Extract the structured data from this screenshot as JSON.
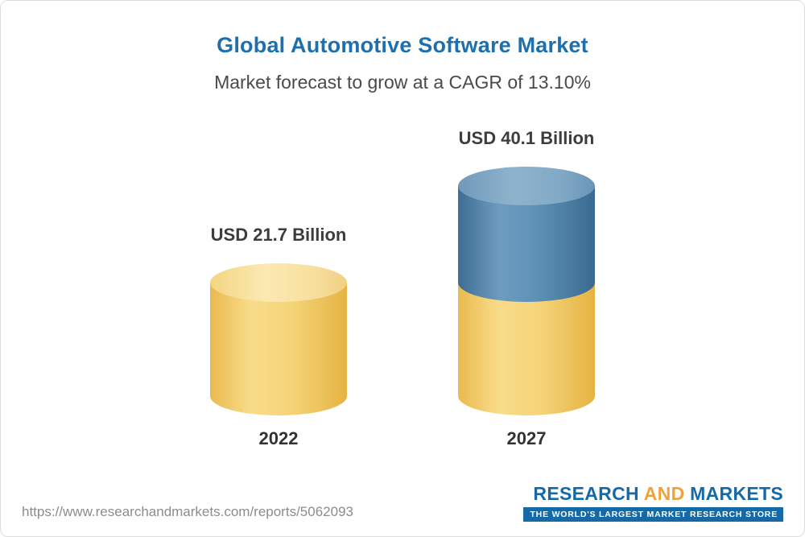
{
  "header": {
    "title": "Global Automotive Software Market",
    "subtitle": "Market forecast to grow at a CAGR of 13.10%"
  },
  "chart_data": {
    "type": "bar",
    "variant": "3d-cylinder",
    "categories": [
      "2022",
      "2027"
    ],
    "values": [
      21.7,
      40.1
    ],
    "value_labels": [
      "USD 21.7 Billion",
      "USD 40.1 Billion"
    ],
    "unit": "USD Billion",
    "title": "Global Automotive Software Market",
    "subtitle": "Market forecast to grow at a CAGR of 13.10%",
    "cagr": "13.10%",
    "ylim": [
      0,
      40.1
    ],
    "grid": false,
    "legend": false,
    "colors": {
      "base_segment": "#f2cd69",
      "growth_segment": "#4d82ad"
    },
    "notes": "2027 cylinder shows base (matching 2022 value) in gold with growth portion stacked in blue"
  },
  "footer": {
    "url": "https://www.researchandmarkets.com/reports/5062093",
    "logo": {
      "research": "RESEARCH",
      "and": " AND ",
      "markets": "MARKETS",
      "tagline": "THE WORLD'S LARGEST MARKET RESEARCH STORE"
    }
  }
}
